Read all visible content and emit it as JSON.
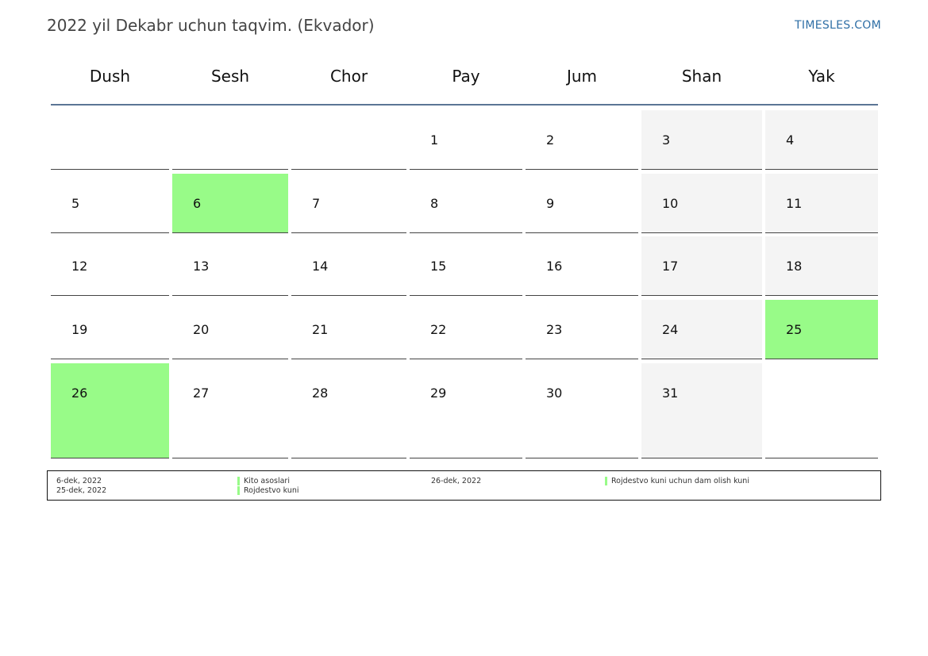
{
  "title": "2022 yil Dekabr uchun taqvim. (Ekvador)",
  "site": "TIMESLES.COM",
  "colors": {
    "holiday": "#98fb88",
    "weekend": "#f4f4f4",
    "header_line": "#5b7595",
    "site_link": "#2f6fa6"
  },
  "weekdays": [
    "Dush",
    "Sesh",
    "Chor",
    "Pay",
    "Jum",
    "Shan",
    "Yak"
  ],
  "weeks": [
    [
      null,
      null,
      null,
      "1",
      "2",
      "3",
      "4"
    ],
    [
      "5",
      "6",
      "7",
      "8",
      "9",
      "10",
      "11"
    ],
    [
      "12",
      "13",
      "14",
      "15",
      "16",
      "17",
      "18"
    ],
    [
      "19",
      "20",
      "21",
      "22",
      "23",
      "24",
      "25"
    ],
    [
      "26",
      "27",
      "28",
      "29",
      "30",
      "31",
      null
    ]
  ],
  "holidays": [
    "6",
    "25",
    "26"
  ],
  "legend": [
    {
      "date": "6-dek, 2022",
      "name": "Kito asoslari"
    },
    {
      "date": "26-dek, 2022",
      "name": "Rojdestvo kuni uchun dam olish kuni"
    },
    {
      "date": "25-dek, 2022",
      "name": "Rojdestvo kuni"
    }
  ]
}
